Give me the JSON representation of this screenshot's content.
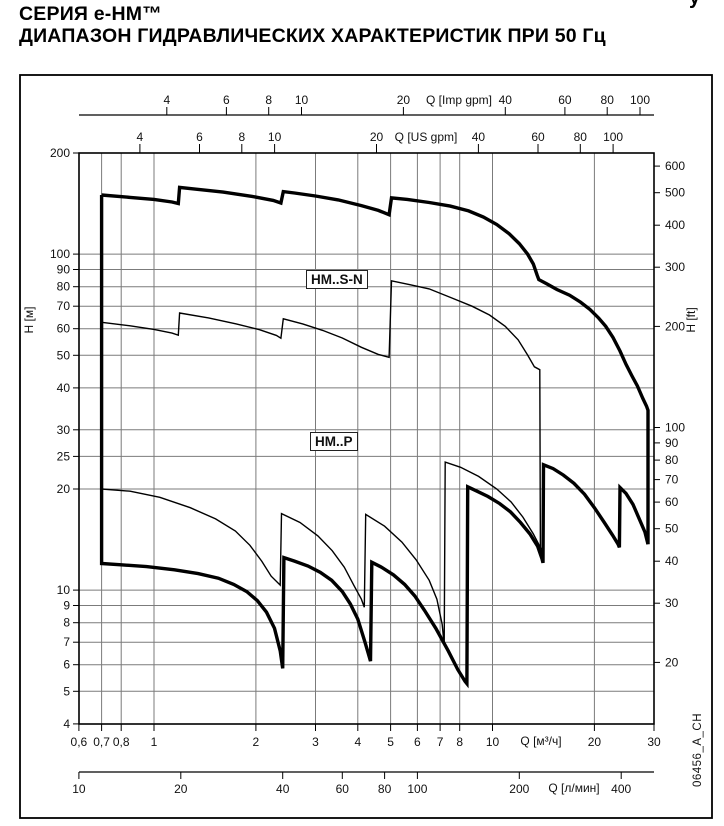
{
  "title": {
    "line1": "СЕРИЯ  e-HM™",
    "line2": "ДИАПАЗОН ГИДРАВЛИЧЕСКИХ ХАРАКТЕРИСТИК ПРИ 50 Гц",
    "cropped_fragment": "у"
  },
  "side_code": "06456_A_CH",
  "region_labels": {
    "sn": "HM..S-N",
    "p": "HM..P"
  },
  "colors": {
    "curve": "#000000",
    "grid": "#7b7b7b",
    "axis": "#000000",
    "text": "#111111"
  },
  "chart_data": {
    "type": "line",
    "x_scale": "log",
    "y_scale": "log",
    "x_range_m3h": [
      0.6,
      30
    ],
    "y_range_m": [
      4,
      200
    ],
    "grid_on": true,
    "axes": {
      "top_imp_gpm": {
        "label": "Q [Imp gpm]",
        "ticks": [
          4,
          6,
          8,
          10,
          20,
          40,
          60,
          80,
          100
        ],
        "to_m3h": 0.27277
      },
      "top_us_gpm": {
        "label": "Q [US gpm]",
        "ticks": [
          4,
          6,
          8,
          10,
          20,
          40,
          60,
          80,
          100
        ],
        "to_m3h": 0.22712
      },
      "left_m": {
        "label": "H [м]",
        "ticks": [
          200,
          100,
          90,
          80,
          70,
          60,
          50,
          40,
          30,
          25,
          20,
          10,
          9,
          8,
          7,
          6,
          5,
          4
        ]
      },
      "right_ft": {
        "label": "H [ft]",
        "ticks": [
          600,
          500,
          400,
          300,
          200,
          100,
          90,
          80,
          70,
          60,
          50,
          40,
          30,
          20
        ],
        "ft_to_m": 0.3048
      },
      "bottom_m3h": {
        "label": "Q [м³/ч]",
        "ticks": [
          {
            "v": 0.6,
            "label": "0,6"
          },
          {
            "v": 0.7,
            "label": "0,7"
          },
          {
            "v": 0.8,
            "label": "0,8"
          },
          {
            "v": 1,
            "label": "1"
          },
          {
            "v": 2,
            "label": "2"
          },
          {
            "v": 3,
            "label": "3"
          },
          {
            "v": 4,
            "label": "4"
          },
          {
            "v": 5,
            "label": "5"
          },
          {
            "v": 6,
            "label": "6"
          },
          {
            "v": 7,
            "label": "7"
          },
          {
            "v": 8,
            "label": "8"
          },
          {
            "v": 10,
            "label": "10"
          },
          {
            "v": 20,
            "label": "20"
          },
          {
            "v": 30,
            "label": "30"
          }
        ]
      },
      "bottom_l_min": {
        "label": "Q [л/мин]",
        "ticks": [
          10,
          20,
          40,
          60,
          80,
          100,
          200,
          400
        ],
        "to_m3h": 0.06
      }
    },
    "grid": {
      "vertical_m3h": [
        0.7,
        0.8,
        1,
        2,
        3,
        4,
        5,
        6,
        7,
        8,
        10,
        20,
        30
      ],
      "horizontal_m": [
        100,
        90,
        80,
        70,
        60,
        50,
        40,
        30,
        25,
        20,
        10,
        9,
        8,
        7,
        6,
        5
      ]
    },
    "series": [
      {
        "name": "hm-sn-upper-envelope",
        "stroke_width": 3.4,
        "points": [
          [
            0.7,
            150
          ],
          [
            0.85,
            147.5
          ],
          [
            1.0,
            145.5
          ],
          [
            1.13,
            143
          ],
          [
            1.18,
            141.5
          ],
          [
            1.19,
            158
          ],
          [
            1.3,
            156.5
          ],
          [
            1.6,
            153
          ],
          [
            1.95,
            148.5
          ],
          [
            2.25,
            144.5
          ],
          [
            2.37,
            142
          ],
          [
            2.41,
            153.5
          ],
          [
            2.6,
            152
          ],
          [
            3.0,
            149
          ],
          [
            3.5,
            145
          ],
          [
            4.1,
            139.5
          ],
          [
            4.6,
            135
          ],
          [
            4.95,
            131
          ],
          [
            5.03,
            147
          ],
          [
            5.6,
            145.5
          ],
          [
            6.5,
            142.5
          ],
          [
            7.5,
            139
          ],
          [
            8.5,
            134.5
          ],
          [
            9.4,
            129
          ],
          [
            10.3,
            122.5
          ],
          [
            11.2,
            115
          ],
          [
            12.0,
            107.5
          ],
          [
            12.7,
            100
          ],
          [
            13.2,
            93.5
          ],
          [
            13.55,
            86.5
          ],
          [
            13.7,
            84
          ],
          [
            14.5,
            81.5
          ],
          [
            15.5,
            78.5
          ],
          [
            16.9,
            75.5
          ],
          [
            18.2,
            72
          ],
          [
            19.4,
            68.5
          ],
          [
            20.6,
            64.5
          ],
          [
            21.6,
            61
          ],
          [
            22.7,
            56.5
          ],
          [
            23.8,
            51.5
          ],
          [
            24.8,
            47
          ],
          [
            25.8,
            43.5
          ],
          [
            26.8,
            40.5
          ],
          [
            27.8,
            37.2
          ],
          [
            28.5,
            35.3
          ],
          [
            28.8,
            34.3
          ],
          [
            28.8,
            13.7
          ]
        ]
      },
      {
        "name": "outer-envelope-p-lower",
        "stroke_width": 3.4,
        "points": [
          [
            0.7,
            150
          ],
          [
            0.7,
            12.0
          ],
          [
            0.8,
            11.9
          ],
          [
            0.95,
            11.75
          ],
          [
            1.15,
            11.5
          ],
          [
            1.35,
            11.2
          ],
          [
            1.55,
            10.85
          ],
          [
            1.72,
            10.4
          ],
          [
            1.88,
            9.9
          ],
          [
            2.02,
            9.3
          ],
          [
            2.15,
            8.6
          ],
          [
            2.27,
            7.7
          ],
          [
            2.36,
            6.6
          ],
          [
            2.4,
            5.85
          ],
          [
            2.42,
            12.5
          ],
          [
            2.6,
            12.2
          ],
          [
            2.85,
            11.8
          ],
          [
            3.1,
            11.3
          ],
          [
            3.35,
            10.7
          ],
          [
            3.6,
            9.9
          ],
          [
            3.8,
            9.1
          ],
          [
            4.0,
            8.2
          ],
          [
            4.2,
            7.0
          ],
          [
            4.33,
            6.3
          ],
          [
            4.36,
            6.15
          ],
          [
            4.4,
            12.1
          ],
          [
            4.7,
            11.7
          ],
          [
            5.1,
            11.1
          ],
          [
            5.5,
            10.4
          ],
          [
            5.9,
            9.6
          ],
          [
            6.3,
            8.7
          ],
          [
            6.8,
            7.7
          ],
          [
            7.4,
            6.6
          ],
          [
            7.9,
            5.8
          ],
          [
            8.3,
            5.35
          ],
          [
            8.4,
            5.27
          ],
          [
            8.45,
            20.3
          ],
          [
            9.0,
            19.7
          ],
          [
            9.7,
            19.0
          ],
          [
            10.5,
            18.1
          ],
          [
            11.3,
            17.1
          ],
          [
            12.1,
            15.9
          ],
          [
            12.9,
            14.7
          ],
          [
            13.6,
            13.5
          ],
          [
            14.0,
            12.4
          ],
          [
            14.1,
            12.05
          ],
          [
            14.15,
            23.6
          ],
          [
            15.1,
            23.0
          ],
          [
            16.2,
            22.0
          ],
          [
            17.4,
            20.8
          ],
          [
            18.7,
            19.3
          ],
          [
            20.0,
            17.6
          ],
          [
            21.4,
            15.9
          ],
          [
            22.6,
            14.6
          ],
          [
            23.5,
            13.7
          ],
          [
            23.7,
            13.4
          ],
          [
            23.8,
            20.2
          ],
          [
            24.8,
            19.4
          ],
          [
            26.0,
            18.0
          ],
          [
            27.2,
            16.2
          ],
          [
            28.2,
            14.9
          ],
          [
            28.8,
            13.7
          ]
        ]
      },
      {
        "name": "hm-sn-inner-boundary",
        "stroke_width": 1.4,
        "points": [
          [
            0.7,
            62.7
          ],
          [
            0.85,
            61.2
          ],
          [
            1.0,
            59.7
          ],
          [
            1.13,
            58.2
          ],
          [
            1.18,
            57.4
          ],
          [
            1.19,
            66.8
          ],
          [
            1.45,
            64.6
          ],
          [
            1.75,
            62
          ],
          [
            2.05,
            59.6
          ],
          [
            2.3,
            57.3
          ],
          [
            2.37,
            56.2
          ],
          [
            2.41,
            64.2
          ],
          [
            2.75,
            62
          ],
          [
            3.15,
            59.3
          ],
          [
            3.6,
            56.3
          ],
          [
            4.1,
            52.8
          ],
          [
            4.6,
            50.3
          ],
          [
            4.95,
            49.3
          ],
          [
            5.03,
            83.3
          ],
          [
            5.7,
            81.1
          ],
          [
            6.5,
            78.8
          ],
          [
            7.6,
            74
          ],
          [
            8.7,
            70
          ],
          [
            9.8,
            65.9
          ],
          [
            10.9,
            61
          ],
          [
            11.9,
            55.6
          ],
          [
            12.7,
            50.1
          ],
          [
            13.3,
            46.2
          ],
          [
            13.8,
            45.3
          ],
          [
            13.85,
            13.0
          ],
          [
            14.05,
            12.1
          ]
        ]
      },
      {
        "name": "hm-p-upper-boundary",
        "stroke_width": 1.4,
        "points": [
          [
            0.7,
            20.0
          ],
          [
            0.85,
            19.7
          ],
          [
            1.04,
            18.9
          ],
          [
            1.28,
            17.6
          ],
          [
            1.52,
            16.3
          ],
          [
            1.74,
            15.0
          ],
          [
            1.92,
            13.6
          ],
          [
            2.08,
            12.2
          ],
          [
            2.22,
            11.0
          ],
          [
            2.36,
            10.35
          ],
          [
            2.38,
            16.9
          ],
          [
            2.7,
            15.9
          ],
          [
            3.05,
            14.5
          ],
          [
            3.36,
            13.1
          ],
          [
            3.65,
            11.7
          ],
          [
            3.9,
            10.3
          ],
          [
            4.1,
            9.4
          ],
          [
            4.18,
            8.9
          ],
          [
            4.22,
            16.8
          ],
          [
            4.8,
            15.5
          ],
          [
            5.4,
            13.9
          ],
          [
            5.95,
            12.3
          ],
          [
            6.5,
            10.7
          ],
          [
            6.85,
            9.4
          ],
          [
            7.1,
            7.9
          ],
          [
            7.2,
            6.85
          ],
          [
            7.25,
            24.05
          ],
          [
            8.05,
            23.2
          ],
          [
            9.1,
            21.8
          ],
          [
            10.3,
            20.0
          ],
          [
            11.35,
            18.3
          ],
          [
            12.3,
            16.5
          ],
          [
            13.2,
            14.7
          ],
          [
            13.9,
            13.3
          ],
          [
            14.05,
            12.1
          ]
        ]
      }
    ]
  }
}
